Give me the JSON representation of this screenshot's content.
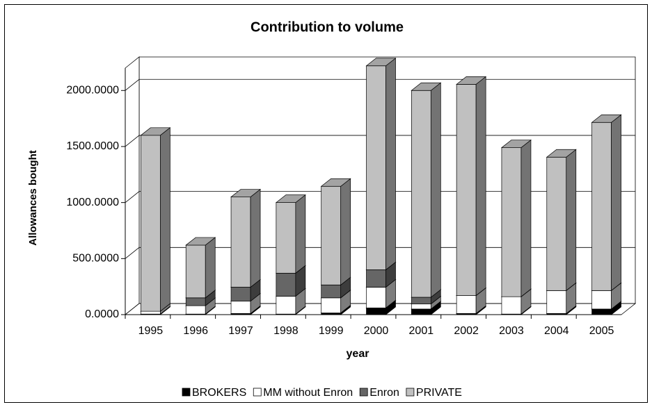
{
  "chart_data": {
    "type": "bar3d_stacked",
    "title": "Contribution to volume",
    "x_label": "year",
    "y_label": "Allowances bought",
    "categories": [
      "1995",
      "1996",
      "1997",
      "1998",
      "1999",
      "2000",
      "2001",
      "2002",
      "2003",
      "2004",
      "2005"
    ],
    "series": [
      {
        "name": "BROKERS",
        "color": "#000000",
        "values": [
          5,
          5,
          10,
          5,
          15,
          60,
          50,
          10,
          5,
          10,
          50
        ]
      },
      {
        "name": "MM without Enron",
        "color": "#ffffff",
        "values": [
          25,
          75,
          110,
          160,
          135,
          185,
          45,
          160,
          155,
          205,
          165
        ]
      },
      {
        "name": "Enron",
        "color": "#666666",
        "values": [
          0,
          70,
          125,
          205,
          115,
          155,
          60,
          0,
          0,
          0,
          0
        ]
      },
      {
        "name": "PRIVATE",
        "color": "#c0c0c0",
        "values": [
          1570,
          470,
          805,
          630,
          880,
          1820,
          1845,
          1885,
          1330,
          1190,
          1500
        ]
      }
    ],
    "ylim": [
      0,
      2200
    ],
    "yticks": [
      {
        "value": 0,
        "label": "0.0000"
      },
      {
        "value": 500,
        "label": "500.0000"
      },
      {
        "value": 1000,
        "label": "1000.0000"
      },
      {
        "value": 1500,
        "label": "1500.0000"
      },
      {
        "value": 2000,
        "label": "2000.0000"
      }
    ],
    "grid": true,
    "legend": "bottom"
  }
}
